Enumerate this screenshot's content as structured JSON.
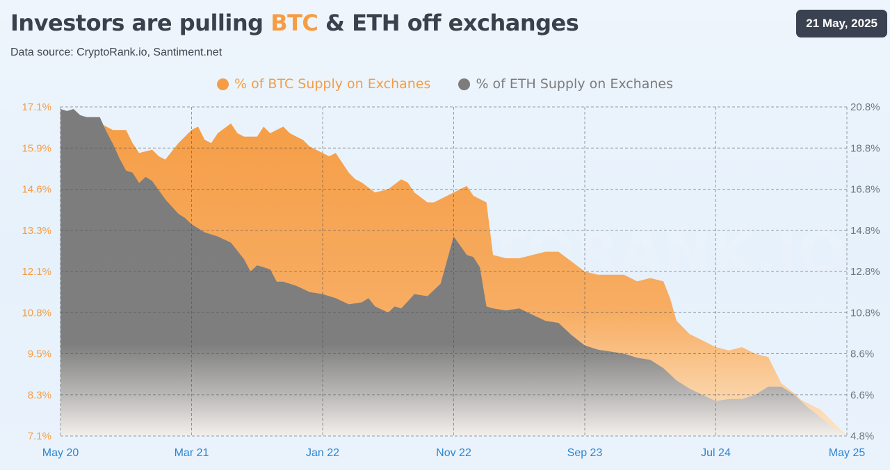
{
  "header": {
    "title_prefix": "Investors are pulling ",
    "title_btc": "BTC",
    "title_suffix": " & ETH off exchanges",
    "source": "Data source: CryptoRank.io, Santiment.net",
    "date": "21 May, 2025"
  },
  "watermark": "CRYPTORANK.IO",
  "colors": {
    "btc": "#f59d45",
    "eth": "#7c7c7c",
    "badge_bg": "#3a4150",
    "axis_x": "#2d86d0"
  },
  "chart_data": {
    "type": "area",
    "title": "Investors are pulling BTC & ETH off exchanges",
    "x_labels": [
      "May 20",
      "Mar 21",
      "Jan 22",
      "Nov 22",
      "Sep 23",
      "Jul 24",
      "May 25"
    ],
    "x_range": [
      0,
      60
    ],
    "y_left": {
      "label": "% of BTC Supply on Exchanes",
      "ticks": [
        "17.1%",
        "15.9%",
        "14.6%",
        "13.3%",
        "12.1%",
        "10.8%",
        "9.5%",
        "8.3%",
        "7.1%"
      ],
      "range": [
        7.1,
        17.1
      ]
    },
    "y_right": {
      "label": "% of ETH Supply on Exchanes",
      "ticks": [
        "20.8%",
        "18.8%",
        "16.8%",
        "14.8%",
        "12.8%",
        "10.8%",
        "8.6%",
        "6.6%",
        "4.8%"
      ],
      "range": [
        4.8,
        20.8
      ]
    },
    "grid": "dashed",
    "series": [
      {
        "name": "% of BTC Supply on Exchanes",
        "axis": "left",
        "x": [
          0,
          1,
          1.5,
          2,
          2.5,
          3,
          3.5,
          4,
          5,
          5.5,
          6,
          7,
          7.5,
          8,
          9,
          10,
          10.5,
          11,
          11.5,
          12,
          13,
          13.5,
          14,
          15,
          15.5,
          16,
          17,
          17.5,
          18,
          18.5,
          19,
          20,
          20.5,
          21,
          22,
          22.5,
          23,
          24,
          25,
          26,
          26.5,
          27,
          28,
          28.5,
          29,
          30,
          31,
          31.5,
          32,
          32.5,
          33,
          34,
          35,
          36,
          37,
          38,
          39,
          40,
          41,
          42,
          43,
          44,
          45,
          46,
          46.5,
          47,
          48,
          49,
          50,
          51,
          52,
          53,
          54,
          55,
          56,
          56.5,
          57,
          58,
          59,
          60
        ],
        "values": [
          17.0,
          16.9,
          16.6,
          16.7,
          16.8,
          16.6,
          16.5,
          16.4,
          16.4,
          16.0,
          15.7,
          15.8,
          15.6,
          15.5,
          16.0,
          16.4,
          16.5,
          16.1,
          16.0,
          16.3,
          16.6,
          16.3,
          16.2,
          16.2,
          16.5,
          16.3,
          16.5,
          16.3,
          16.2,
          16.1,
          15.9,
          15.7,
          15.6,
          15.7,
          15.1,
          14.9,
          14.8,
          14.5,
          14.6,
          14.9,
          14.8,
          14.5,
          14.2,
          14.2,
          14.3,
          14.5,
          14.7,
          14.4,
          14.3,
          14.2,
          12.6,
          12.5,
          12.5,
          12.6,
          12.7,
          12.7,
          12.4,
          12.1,
          12.0,
          12.0,
          12.0,
          11.8,
          11.9,
          11.8,
          11.3,
          10.6,
          10.2,
          10.0,
          9.8,
          9.7,
          9.8,
          9.6,
          9.5,
          8.7,
          8.4,
          8.2,
          8.1,
          7.9,
          7.5,
          7.1
        ]
      },
      {
        "name": "% of ETH Supply on Exchanes",
        "axis": "right",
        "x": [
          0,
          0.5,
          1,
          1.5,
          2,
          3,
          3.5,
          4,
          4.5,
          5,
          5.5,
          6,
          6.5,
          7,
          8,
          9,
          9.5,
          10,
          11,
          12,
          13,
          14,
          14.5,
          15,
          16,
          16.5,
          17,
          18,
          19,
          20,
          21,
          22,
          23,
          23.5,
          24,
          25,
          25.5,
          26,
          27,
          28,
          29,
          30,
          31,
          31.5,
          32,
          32.5,
          33,
          34,
          35,
          36,
          37,
          38,
          39,
          40,
          41,
          42,
          43,
          44,
          45,
          46,
          47,
          48,
          49,
          50,
          51,
          52,
          53,
          54,
          55,
          56,
          57,
          58,
          59,
          60
        ],
        "values": [
          20.7,
          20.6,
          20.7,
          20.4,
          20.3,
          20.3,
          19.6,
          19.0,
          18.3,
          17.7,
          17.6,
          17.1,
          17.4,
          17.2,
          16.3,
          15.6,
          15.4,
          15.1,
          14.7,
          14.5,
          14.2,
          13.4,
          12.8,
          13.1,
          12.9,
          12.3,
          12.3,
          12.1,
          11.8,
          11.7,
          11.5,
          11.2,
          11.3,
          11.5,
          11.1,
          10.8,
          11.1,
          11.0,
          11.7,
          11.6,
          12.2,
          14.5,
          13.6,
          13.5,
          13.0,
          11.1,
          11.0,
          10.9,
          11.0,
          10.7,
          10.4,
          10.3,
          9.7,
          9.2,
          9.0,
          8.9,
          8.8,
          8.6,
          8.5,
          8.1,
          7.5,
          7.1,
          6.8,
          6.5,
          6.6,
          6.6,
          6.8,
          7.2,
          7.2,
          6.8,
          6.2,
          5.7,
          5.2,
          4.8
        ]
      }
    ]
  }
}
